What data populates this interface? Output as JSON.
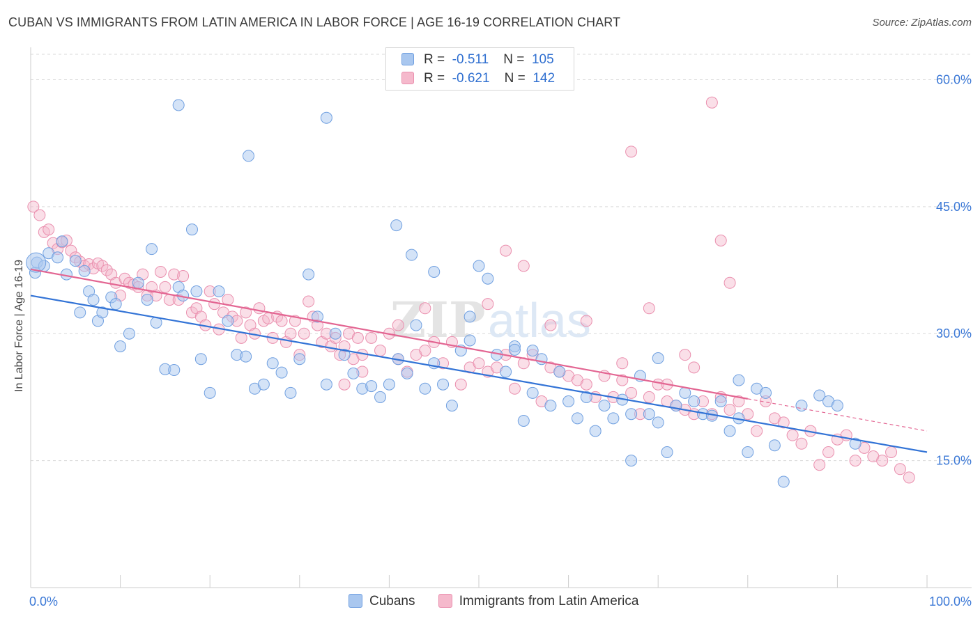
{
  "header": {
    "title": "CUBAN VS IMMIGRANTS FROM LATIN AMERICA IN LABOR FORCE | AGE 16-19 CORRELATION CHART",
    "source": "Source: ZipAtlas.com"
  },
  "legend": {
    "rows": [
      {
        "r_label": "R =",
        "r_value": "-0.511",
        "n_label": "N =",
        "n_value": "105"
      },
      {
        "r_label": "R =",
        "r_value": "-0.621",
        "n_label": "N =",
        "n_value": "142"
      }
    ]
  },
  "watermark": {
    "zip": "ZIP",
    "atlas": "atlas"
  },
  "colors": {
    "cubans_fill": "#a9c7ef",
    "cubans_stroke": "#6f9fe0",
    "cubans_line": "#3273d6",
    "latam_fill": "#f5b9cc",
    "latam_stroke": "#ea8fae",
    "latam_line": "#e36592",
    "grid": "#d9d9d9",
    "tick_label": "#3b78d6"
  },
  "chart_data": {
    "type": "scatter",
    "title": "CUBAN VS IMMIGRANTS FROM LATIN AMERICA IN LABOR FORCE | AGE 16-19 CORRELATION CHART",
    "xlabel": "",
    "ylabel": "In Labor Force | Age 16-19",
    "xlim": [
      0,
      100
    ],
    "ylim": [
      0,
      63
    ],
    "x_tick_labels": [
      "0.0%",
      "100.0%"
    ],
    "y_ticks": [
      15,
      30,
      45,
      60
    ],
    "y_tick_labels": [
      "15.0%",
      "30.0%",
      "45.0%",
      "60.0%"
    ],
    "grid": true,
    "legend_position": "top-center",
    "series": [
      {
        "name": "Cubans",
        "r": -0.511,
        "n": 105,
        "trend": {
          "x": [
            0,
            100
          ],
          "y": [
            34.5,
            16.0
          ]
        },
        "points": [
          [
            0.5,
            37.2
          ],
          [
            0.7,
            38.4
          ],
          [
            1.5,
            38.0
          ],
          [
            2,
            39.5
          ],
          [
            3,
            39.0
          ],
          [
            3.5,
            40.9
          ],
          [
            4,
            37.0
          ],
          [
            5,
            38.6
          ],
          [
            6,
            37.4
          ],
          [
            6.5,
            35.0
          ],
          [
            7,
            34.0
          ],
          [
            5.5,
            32.5
          ],
          [
            7.5,
            31.5
          ],
          [
            8,
            32.5
          ],
          [
            9,
            34.3
          ],
          [
            10,
            28.5
          ],
          [
            11,
            30.0
          ],
          [
            9.5,
            33.5
          ],
          [
            12,
            36.0
          ],
          [
            13,
            34.0
          ],
          [
            14,
            31.3
          ],
          [
            13.5,
            40.0
          ],
          [
            15,
            25.8
          ],
          [
            16,
            25.7
          ],
          [
            16.5,
            35.5
          ],
          [
            17,
            34.5
          ],
          [
            18,
            42.3
          ],
          [
            18.5,
            35.0
          ],
          [
            19,
            27.0
          ],
          [
            20,
            23.0
          ],
          [
            21,
            35.0
          ],
          [
            22,
            31.5
          ],
          [
            23,
            27.5
          ],
          [
            24,
            27.3
          ],
          [
            25,
            23.5
          ],
          [
            26,
            24.0
          ],
          [
            27,
            26.5
          ],
          [
            28,
            25.4
          ],
          [
            29,
            23.0
          ],
          [
            30,
            27.0
          ],
          [
            31,
            37.0
          ],
          [
            32,
            32.0
          ],
          [
            33,
            24.0
          ],
          [
            34,
            30.0
          ],
          [
            35,
            27.5
          ],
          [
            36,
            25.3
          ],
          [
            37,
            23.5
          ],
          [
            38,
            23.8
          ],
          [
            39,
            22.5
          ],
          [
            40,
            24.0
          ],
          [
            41,
            27.0
          ],
          [
            42,
            25.3
          ],
          [
            43,
            31.0
          ],
          [
            44,
            23.5
          ],
          [
            45,
            26.5
          ],
          [
            46,
            24.0
          ],
          [
            47,
            21.5
          ],
          [
            48,
            28.0
          ],
          [
            49,
            32.0
          ],
          [
            50,
            38.0
          ],
          [
            51,
            36.5
          ],
          [
            52,
            27.5
          ],
          [
            53,
            25.5
          ],
          [
            54,
            28.5
          ],
          [
            55,
            19.7
          ],
          [
            56,
            28.0
          ],
          [
            57,
            27.0
          ],
          [
            58,
            21.5
          ],
          [
            59,
            25.5
          ],
          [
            60,
            22.0
          ],
          [
            61,
            20.0
          ],
          [
            62,
            22.5
          ],
          [
            63,
            18.5
          ],
          [
            64,
            21.5
          ],
          [
            65,
            20.0
          ],
          [
            66,
            22.2
          ],
          [
            67,
            20.5
          ],
          [
            68,
            25.0
          ],
          [
            69,
            20.5
          ],
          [
            70,
            19.5
          ],
          [
            71,
            16.0
          ],
          [
            72,
            21.5
          ],
          [
            73,
            23.0
          ],
          [
            74,
            22.0
          ],
          [
            75,
            20.5
          ],
          [
            76,
            20.3
          ],
          [
            77,
            22.0
          ],
          [
            78,
            18.5
          ],
          [
            79,
            20.0
          ],
          [
            80,
            16.0
          ],
          [
            81,
            23.5
          ],
          [
            82,
            23.0
          ],
          [
            83,
            16.8
          ],
          [
            84,
            12.5
          ],
          [
            86,
            21.5
          ],
          [
            88,
            22.7
          ],
          [
            89,
            22.0
          ],
          [
            90,
            21.5
          ],
          [
            92,
            17.0
          ],
          [
            16.5,
            57.0
          ],
          [
            24.3,
            51.0
          ],
          [
            33,
            55.5
          ],
          [
            40.8,
            42.8
          ],
          [
            42.5,
            39.3
          ],
          [
            45,
            37.3
          ],
          [
            49,
            29.2
          ],
          [
            54,
            28.1
          ],
          [
            56,
            23.0
          ],
          [
            67,
            15.0
          ],
          [
            70,
            27.1
          ],
          [
            79,
            24.5
          ]
        ]
      },
      {
        "name": "Immigrants from Latin America",
        "r": -0.621,
        "n": 142,
        "trend": {
          "x": [
            0,
            80
          ],
          "y": [
            37.6,
            22.3
          ]
        },
        "trend_dashed": {
          "x": [
            80,
            100
          ],
          "y": [
            22.3,
            18.5
          ]
        },
        "points": [
          [
            0.3,
            45.0
          ],
          [
            1,
            44.0
          ],
          [
            1.5,
            42.0
          ],
          [
            2,
            42.3
          ],
          [
            2.5,
            40.7
          ],
          [
            3,
            40.0
          ],
          [
            3.5,
            40.8
          ],
          [
            4,
            41.0
          ],
          [
            4.5,
            39.8
          ],
          [
            5,
            39.0
          ],
          [
            5.5,
            38.5
          ],
          [
            6,
            38.0
          ],
          [
            6.5,
            38.2
          ],
          [
            7,
            37.7
          ],
          [
            7.5,
            38.3
          ],
          [
            8,
            38.0
          ],
          [
            8.5,
            37.5
          ],
          [
            9,
            37.0
          ],
          [
            9.5,
            36.0
          ],
          [
            10,
            34.5
          ],
          [
            10.5,
            36.5
          ],
          [
            11,
            36.0
          ],
          [
            11.5,
            35.8
          ],
          [
            12,
            35.5
          ],
          [
            12.5,
            37.0
          ],
          [
            13,
            34.5
          ],
          [
            13.5,
            35.5
          ],
          [
            14,
            34.5
          ],
          [
            14.5,
            37.3
          ],
          [
            15,
            35.5
          ],
          [
            15.5,
            34.0
          ],
          [
            16,
            37.0
          ],
          [
            16.5,
            34.0
          ],
          [
            17,
            36.8
          ],
          [
            18,
            32.5
          ],
          [
            18.5,
            33.0
          ],
          [
            19,
            32.0
          ],
          [
            19.5,
            31.0
          ],
          [
            20,
            35.0
          ],
          [
            20.5,
            33.5
          ],
          [
            21,
            30.5
          ],
          [
            21.5,
            32.5
          ],
          [
            22,
            34.0
          ],
          [
            22.5,
            32.0
          ],
          [
            23,
            31.5
          ],
          [
            23.5,
            29.5
          ],
          [
            24,
            32.5
          ],
          [
            24.5,
            31.0
          ],
          [
            25,
            30.0
          ],
          [
            25.5,
            33.0
          ],
          [
            26,
            31.5
          ],
          [
            26.5,
            31.8
          ],
          [
            27,
            29.5
          ],
          [
            27.5,
            32.0
          ],
          [
            28,
            31.5
          ],
          [
            28.5,
            29.0
          ],
          [
            29,
            30.0
          ],
          [
            29.5,
            31.5
          ],
          [
            30,
            27.5
          ],
          [
            30.5,
            30.0
          ],
          [
            31,
            33.8
          ],
          [
            31.5,
            32.0
          ],
          [
            32,
            31.0
          ],
          [
            32.5,
            29.0
          ],
          [
            33,
            30.0
          ],
          [
            33.5,
            28.5
          ],
          [
            34,
            29.5
          ],
          [
            34.5,
            27.5
          ],
          [
            35,
            28.5
          ],
          [
            35.5,
            30.0
          ],
          [
            36,
            27.0
          ],
          [
            36.5,
            29.5
          ],
          [
            37,
            27.5
          ],
          [
            38,
            29.5
          ],
          [
            39,
            28.0
          ],
          [
            40,
            30.0
          ],
          [
            41,
            27.0
          ],
          [
            42,
            25.5
          ],
          [
            43,
            27.5
          ],
          [
            44,
            28.0
          ],
          [
            45,
            29.0
          ],
          [
            46,
            26.5
          ],
          [
            47,
            29.0
          ],
          [
            48,
            24.0
          ],
          [
            49,
            26.0
          ],
          [
            50,
            26.5
          ],
          [
            51,
            25.5
          ],
          [
            52,
            26.0
          ],
          [
            53,
            27.5
          ],
          [
            54,
            23.5
          ],
          [
            55,
            26.5
          ],
          [
            56,
            27.5
          ],
          [
            57,
            22.0
          ],
          [
            58,
            26.0
          ],
          [
            59,
            25.5
          ],
          [
            60,
            25.0
          ],
          [
            61,
            24.5
          ],
          [
            62,
            24.0
          ],
          [
            63,
            22.5
          ],
          [
            64,
            25.0
          ],
          [
            65,
            22.5
          ],
          [
            66,
            24.5
          ],
          [
            67,
            23.0
          ],
          [
            68,
            20.5
          ],
          [
            69,
            22.5
          ],
          [
            70,
            24.0
          ],
          [
            71,
            22.0
          ],
          [
            72,
            21.5
          ],
          [
            73,
            21.0
          ],
          [
            74,
            20.5
          ],
          [
            75,
            22.0
          ],
          [
            76,
            20.5
          ],
          [
            77,
            22.5
          ],
          [
            78,
            21.0
          ],
          [
            79,
            22.0
          ],
          [
            80,
            20.5
          ],
          [
            81,
            18.5
          ],
          [
            82,
            22.0
          ],
          [
            83,
            20.0
          ],
          [
            84,
            19.5
          ],
          [
            85,
            18.0
          ],
          [
            86,
            17.0
          ],
          [
            87,
            18.5
          ],
          [
            88,
            14.5
          ],
          [
            89,
            16.0
          ],
          [
            90,
            17.5
          ],
          [
            91,
            18.0
          ],
          [
            92,
            15.0
          ],
          [
            93,
            16.5
          ],
          [
            94,
            15.5
          ],
          [
            95,
            15.0
          ],
          [
            96,
            16.0
          ],
          [
            97,
            14.0
          ],
          [
            98,
            13.0
          ],
          [
            76,
            57.3
          ],
          [
            67,
            51.5
          ],
          [
            77,
            41.0
          ],
          [
            78,
            36.0
          ],
          [
            55,
            38.0
          ],
          [
            53,
            39.8
          ],
          [
            51,
            33.5
          ],
          [
            62,
            31.5
          ],
          [
            69,
            33.0
          ],
          [
            44,
            33.0
          ],
          [
            41,
            31.0
          ],
          [
            58,
            31.0
          ],
          [
            71,
            24.0
          ],
          [
            73,
            27.5
          ],
          [
            74,
            26.0
          ],
          [
            66,
            26.5
          ],
          [
            35,
            24.0
          ],
          [
            37,
            25.5
          ]
        ]
      }
    ]
  }
}
